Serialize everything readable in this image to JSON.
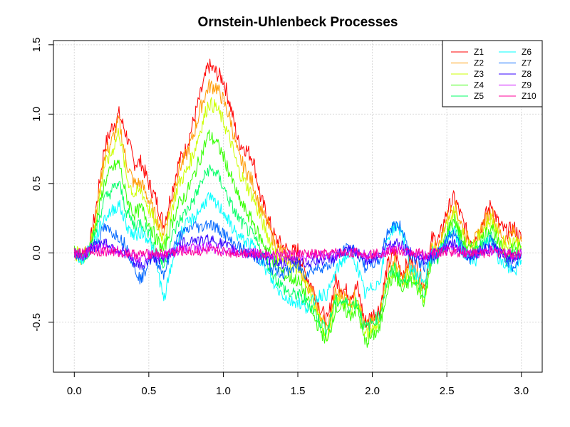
{
  "chart_data": {
    "type": "line",
    "title": "Ornstein-Uhlenbeck Processes",
    "xlabel": "",
    "ylabel": "",
    "xlim": [
      -0.14,
      3.14
    ],
    "ylim": [
      -0.86,
      1.53
    ],
    "x_ticks": [
      0.0,
      0.5,
      1.0,
      1.5,
      2.0,
      2.5,
      3.0
    ],
    "x_tick_labels": [
      "0.0",
      "0.5",
      "1.0",
      "1.5",
      "2.0",
      "2.5",
      "3.0"
    ],
    "y_ticks": [
      -0.5,
      0.0,
      0.5,
      1.0,
      1.5
    ],
    "y_tick_labels": [
      "-0.5",
      "0.0",
      "0.5",
      "1.0",
      "1.5"
    ],
    "grid": true,
    "legend": {
      "position": "top-right",
      "columns": 2
    },
    "x_start": 0,
    "x_step": 0.05,
    "series": [
      {
        "name": "Z1",
        "color": "#FF0000",
        "values": [
          0.0,
          -0.02,
          0.03,
          0.35,
          0.75,
          0.9,
          1.0,
          0.85,
          0.65,
          0.65,
          0.5,
          0.38,
          0.2,
          0.42,
          0.65,
          0.75,
          0.95,
          1.15,
          1.35,
          1.3,
          1.25,
          1.05,
          0.8,
          0.75,
          0.68,
          0.4,
          0.25,
          0.1,
          0.05,
          0.0,
          0.02,
          -0.15,
          -0.25,
          -0.4,
          -0.5,
          -0.2,
          -0.25,
          -0.3,
          -0.25,
          -0.5,
          -0.45,
          -0.4,
          -0.1,
          0.0,
          -0.15,
          -0.05,
          -0.1,
          -0.25,
          0.1,
          0.1,
          0.3,
          0.4,
          0.25,
          0.1,
          0.12,
          0.25,
          0.35,
          0.2,
          0.15,
          0.18,
          0.1
        ]
      },
      {
        "name": "Z2",
        "color": "#FF9900",
        "values": [
          0.0,
          -0.03,
          0.03,
          0.3,
          0.7,
          0.8,
          0.95,
          0.65,
          0.5,
          0.5,
          0.38,
          0.25,
          0.15,
          0.35,
          0.6,
          0.7,
          0.85,
          1.05,
          1.2,
          1.2,
          1.1,
          0.95,
          0.7,
          0.6,
          0.5,
          0.32,
          0.2,
          0.05,
          0.0,
          -0.05,
          -0.05,
          -0.2,
          -0.3,
          -0.45,
          -0.55,
          -0.3,
          -0.3,
          -0.35,
          -0.3,
          -0.55,
          -0.5,
          -0.45,
          -0.15,
          -0.05,
          -0.2,
          -0.1,
          -0.15,
          -0.28,
          0.05,
          0.05,
          0.25,
          0.35,
          0.2,
          0.08,
          0.1,
          0.22,
          0.3,
          0.15,
          0.1,
          0.15,
          0.08
        ]
      },
      {
        "name": "Z3",
        "color": "#CCFF00",
        "values": [
          0.0,
          -0.02,
          0.02,
          0.28,
          0.62,
          0.72,
          0.88,
          0.55,
          0.42,
          0.45,
          0.32,
          0.2,
          0.1,
          0.3,
          0.5,
          0.58,
          0.72,
          0.9,
          1.08,
          1.05,
          0.95,
          0.8,
          0.6,
          0.5,
          0.4,
          0.25,
          0.12,
          0.0,
          -0.05,
          -0.1,
          -0.1,
          -0.22,
          -0.35,
          -0.5,
          -0.6,
          -0.35,
          -0.35,
          -0.4,
          -0.35,
          -0.6,
          -0.55,
          -0.5,
          -0.2,
          -0.1,
          -0.22,
          -0.15,
          -0.2,
          -0.32,
          0.02,
          0.02,
          0.2,
          0.3,
          0.15,
          0.05,
          0.08,
          0.18,
          0.25,
          0.1,
          0.05,
          0.1,
          0.05
        ]
      },
      {
        "name": "Z4",
        "color": "#33FF00",
        "values": [
          0.0,
          -0.03,
          0.02,
          0.22,
          0.5,
          0.6,
          0.65,
          0.4,
          0.28,
          0.32,
          0.22,
          0.1,
          0.02,
          0.2,
          0.35,
          0.42,
          0.55,
          0.7,
          0.85,
          0.8,
          0.7,
          0.55,
          0.4,
          0.3,
          0.22,
          0.1,
          0.02,
          -0.08,
          -0.15,
          -0.18,
          -0.2,
          -0.3,
          -0.45,
          -0.55,
          -0.65,
          -0.4,
          -0.4,
          -0.45,
          -0.4,
          -0.65,
          -0.6,
          -0.55,
          -0.25,
          -0.15,
          -0.28,
          -0.2,
          -0.25,
          -0.35,
          -0.02,
          -0.02,
          0.15,
          0.25,
          0.1,
          0.02,
          0.05,
          0.12,
          0.2,
          0.05,
          0.0,
          0.05,
          0.02
        ]
      },
      {
        "name": "Z5",
        "color": "#00FF66",
        "values": [
          0.0,
          -0.04,
          0.02,
          0.18,
          0.38,
          0.45,
          0.5,
          0.3,
          0.2,
          0.22,
          0.15,
          0.02,
          -0.1,
          0.1,
          0.22,
          0.3,
          0.38,
          0.5,
          0.6,
          0.58,
          0.48,
          0.35,
          0.25,
          0.18,
          0.12,
          0.02,
          -0.08,
          -0.18,
          -0.25,
          -0.3,
          -0.3,
          -0.35,
          -0.4,
          -0.5,
          -0.55,
          -0.35,
          -0.35,
          -0.38,
          -0.35,
          -0.55,
          -0.5,
          -0.45,
          -0.2,
          -0.1,
          -0.22,
          -0.15,
          -0.2,
          -0.28,
          -0.05,
          -0.05,
          0.1,
          0.18,
          0.05,
          0.0,
          0.02,
          0.08,
          0.12,
          0.0,
          -0.05,
          -0.02,
          0.0
        ]
      },
      {
        "name": "Z6",
        "color": "#00FFFF",
        "values": [
          0.0,
          -0.05,
          0.02,
          0.12,
          0.25,
          0.3,
          0.35,
          0.2,
          0.12,
          0.15,
          0.1,
          -0.05,
          -0.35,
          -0.1,
          0.12,
          0.2,
          0.25,
          0.32,
          0.4,
          0.35,
          0.3,
          0.2,
          0.12,
          0.08,
          0.05,
          -0.05,
          -0.15,
          -0.25,
          -0.3,
          -0.35,
          -0.35,
          -0.4,
          -0.35,
          -0.3,
          -0.3,
          -0.15,
          -0.05,
          0.0,
          -0.1,
          -0.3,
          -0.25,
          -0.2,
          0.1,
          0.2,
          0.15,
          -0.1,
          -0.15,
          -0.2,
          0.0,
          0.0,
          0.1,
          0.15,
          0.0,
          -0.05,
          -0.05,
          0.05,
          0.1,
          -0.05,
          -0.1,
          -0.15,
          -0.05
        ]
      },
      {
        "name": "Z7",
        "color": "#0066FF",
        "values": [
          0.0,
          -0.04,
          0.03,
          0.08,
          0.18,
          0.15,
          0.12,
          0.05,
          -0.1,
          -0.2,
          -0.05,
          -0.05,
          -0.15,
          0.0,
          0.12,
          0.15,
          0.2,
          0.18,
          0.22,
          0.18,
          0.15,
          0.08,
          0.05,
          0.0,
          -0.02,
          -0.05,
          -0.1,
          -0.12,
          -0.15,
          -0.12,
          -0.1,
          -0.15,
          -0.12,
          -0.1,
          -0.1,
          -0.05,
          0.0,
          0.05,
          0.0,
          -0.1,
          -0.08,
          -0.05,
          0.15,
          0.2,
          0.18,
          0.0,
          -0.05,
          -0.1,
          -0.05,
          0.0,
          0.1,
          0.15,
          0.05,
          -0.05,
          0.0,
          0.05,
          0.1,
          0.0,
          -0.05,
          -0.1,
          0.0
        ]
      },
      {
        "name": "Z8",
        "color": "#3300FF",
        "values": [
          0.0,
          -0.03,
          0.02,
          0.05,
          0.08,
          0.05,
          0.02,
          0.0,
          -0.08,
          -0.1,
          -0.05,
          -0.03,
          -0.05,
          0.0,
          0.05,
          0.08,
          0.1,
          0.08,
          0.1,
          0.08,
          0.06,
          0.03,
          0.02,
          0.0,
          -0.01,
          -0.02,
          -0.05,
          -0.05,
          -0.08,
          -0.06,
          -0.05,
          -0.08,
          -0.06,
          -0.05,
          -0.05,
          -0.03,
          0.0,
          0.02,
          0.0,
          -0.05,
          -0.04,
          -0.02,
          0.06,
          0.08,
          0.06,
          0.0,
          -0.02,
          -0.05,
          -0.02,
          0.0,
          0.04,
          0.06,
          0.02,
          -0.02,
          0.0,
          0.02,
          0.04,
          0.0,
          -0.02,
          -0.04,
          0.0
        ]
      },
      {
        "name": "Z9",
        "color": "#CC00FF",
        "values": [
          0.0,
          -0.02,
          0.02,
          0.03,
          0.03,
          0.02,
          0.01,
          0.0,
          -0.03,
          -0.04,
          -0.02,
          -0.01,
          -0.02,
          0.0,
          0.02,
          0.03,
          0.04,
          0.03,
          0.04,
          0.03,
          0.02,
          0.01,
          0.01,
          0.0,
          0.0,
          -0.01,
          -0.02,
          -0.02,
          -0.03,
          -0.02,
          -0.02,
          -0.03,
          -0.02,
          -0.02,
          -0.02,
          -0.01,
          0.0,
          0.01,
          0.0,
          -0.02,
          -0.02,
          -0.01,
          0.02,
          0.03,
          0.02,
          0.0,
          -0.01,
          -0.02,
          -0.01,
          0.0,
          0.02,
          0.02,
          0.01,
          -0.01,
          0.0,
          0.01,
          0.02,
          0.0,
          -0.01,
          -0.02,
          0.0
        ]
      },
      {
        "name": "Z10",
        "color": "#FF0099",
        "values": [
          0.0,
          -0.01,
          0.01,
          0.01,
          0.01,
          0.01,
          0.0,
          0.0,
          -0.01,
          -0.01,
          -0.01,
          0.0,
          -0.01,
          0.0,
          0.01,
          0.01,
          0.01,
          0.01,
          0.01,
          0.01,
          0.01,
          0.0,
          0.0,
          0.0,
          0.0,
          0.0,
          -0.01,
          -0.01,
          -0.01,
          -0.01,
          -0.01,
          -0.01,
          -0.01,
          -0.01,
          -0.01,
          0.0,
          0.0,
          0.0,
          0.0,
          -0.01,
          -0.01,
          0.0,
          0.01,
          0.01,
          0.01,
          0.0,
          0.0,
          -0.01,
          0.0,
          0.0,
          0.01,
          0.01,
          0.0,
          0.0,
          0.0,
          0.0,
          0.01,
          0.0,
          0.0,
          -0.01,
          0.0
        ]
      }
    ]
  }
}
